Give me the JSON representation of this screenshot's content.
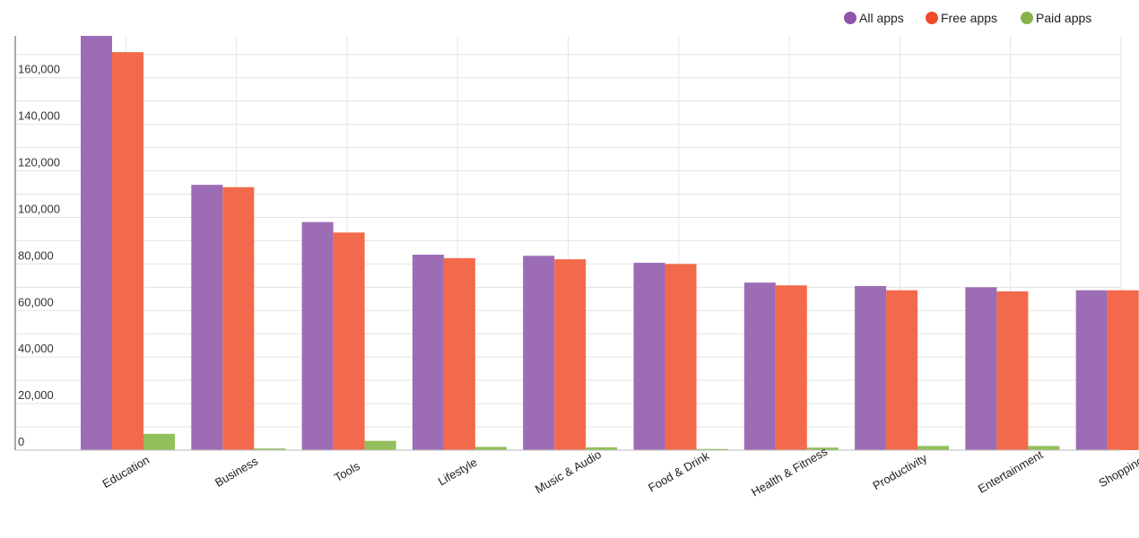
{
  "chart_data": {
    "type": "bar",
    "categories": [
      "Education",
      "Business",
      "Tools",
      "Lifestyle",
      "Music & Audio",
      "Food & Drink",
      "Health & Fitness",
      "Productivity",
      "Entertainment",
      "Shopping"
    ],
    "series": [
      {
        "name": "All apps",
        "color": "#9c6db5",
        "values": [
          178000,
          114000,
          98000,
          84000,
          83500,
          80500,
          72000,
          70500,
          70000,
          68700
        ]
      },
      {
        "name": "Free apps",
        "color": "#f26a4b",
        "values": [
          171000,
          113000,
          93500,
          82500,
          82000,
          80000,
          70800,
          68700,
          68200,
          68700
        ]
      },
      {
        "name": "Paid apps",
        "color": "#93bf5c",
        "values": [
          7000,
          700,
          4000,
          1400,
          1200,
          500,
          1100,
          1800,
          1800,
          300
        ]
      }
    ],
    "legend_colors": {
      "All apps": "#8e55aa",
      "Free apps": "#f04a28",
      "Paid apps": "#86b349"
    },
    "yticks": [
      0,
      20000,
      40000,
      60000,
      80000,
      100000,
      120000,
      140000,
      160000
    ],
    "ytick_labels": [
      "0",
      "20,000",
      "40,000",
      "60,000",
      "80,000",
      "100,000",
      "120,000",
      "140,000",
      "160,000"
    ],
    "ylim": [
      0,
      178000
    ],
    "legend_position": "top-right",
    "grid": true,
    "title": "",
    "xlabel": "",
    "ylabel": ""
  }
}
